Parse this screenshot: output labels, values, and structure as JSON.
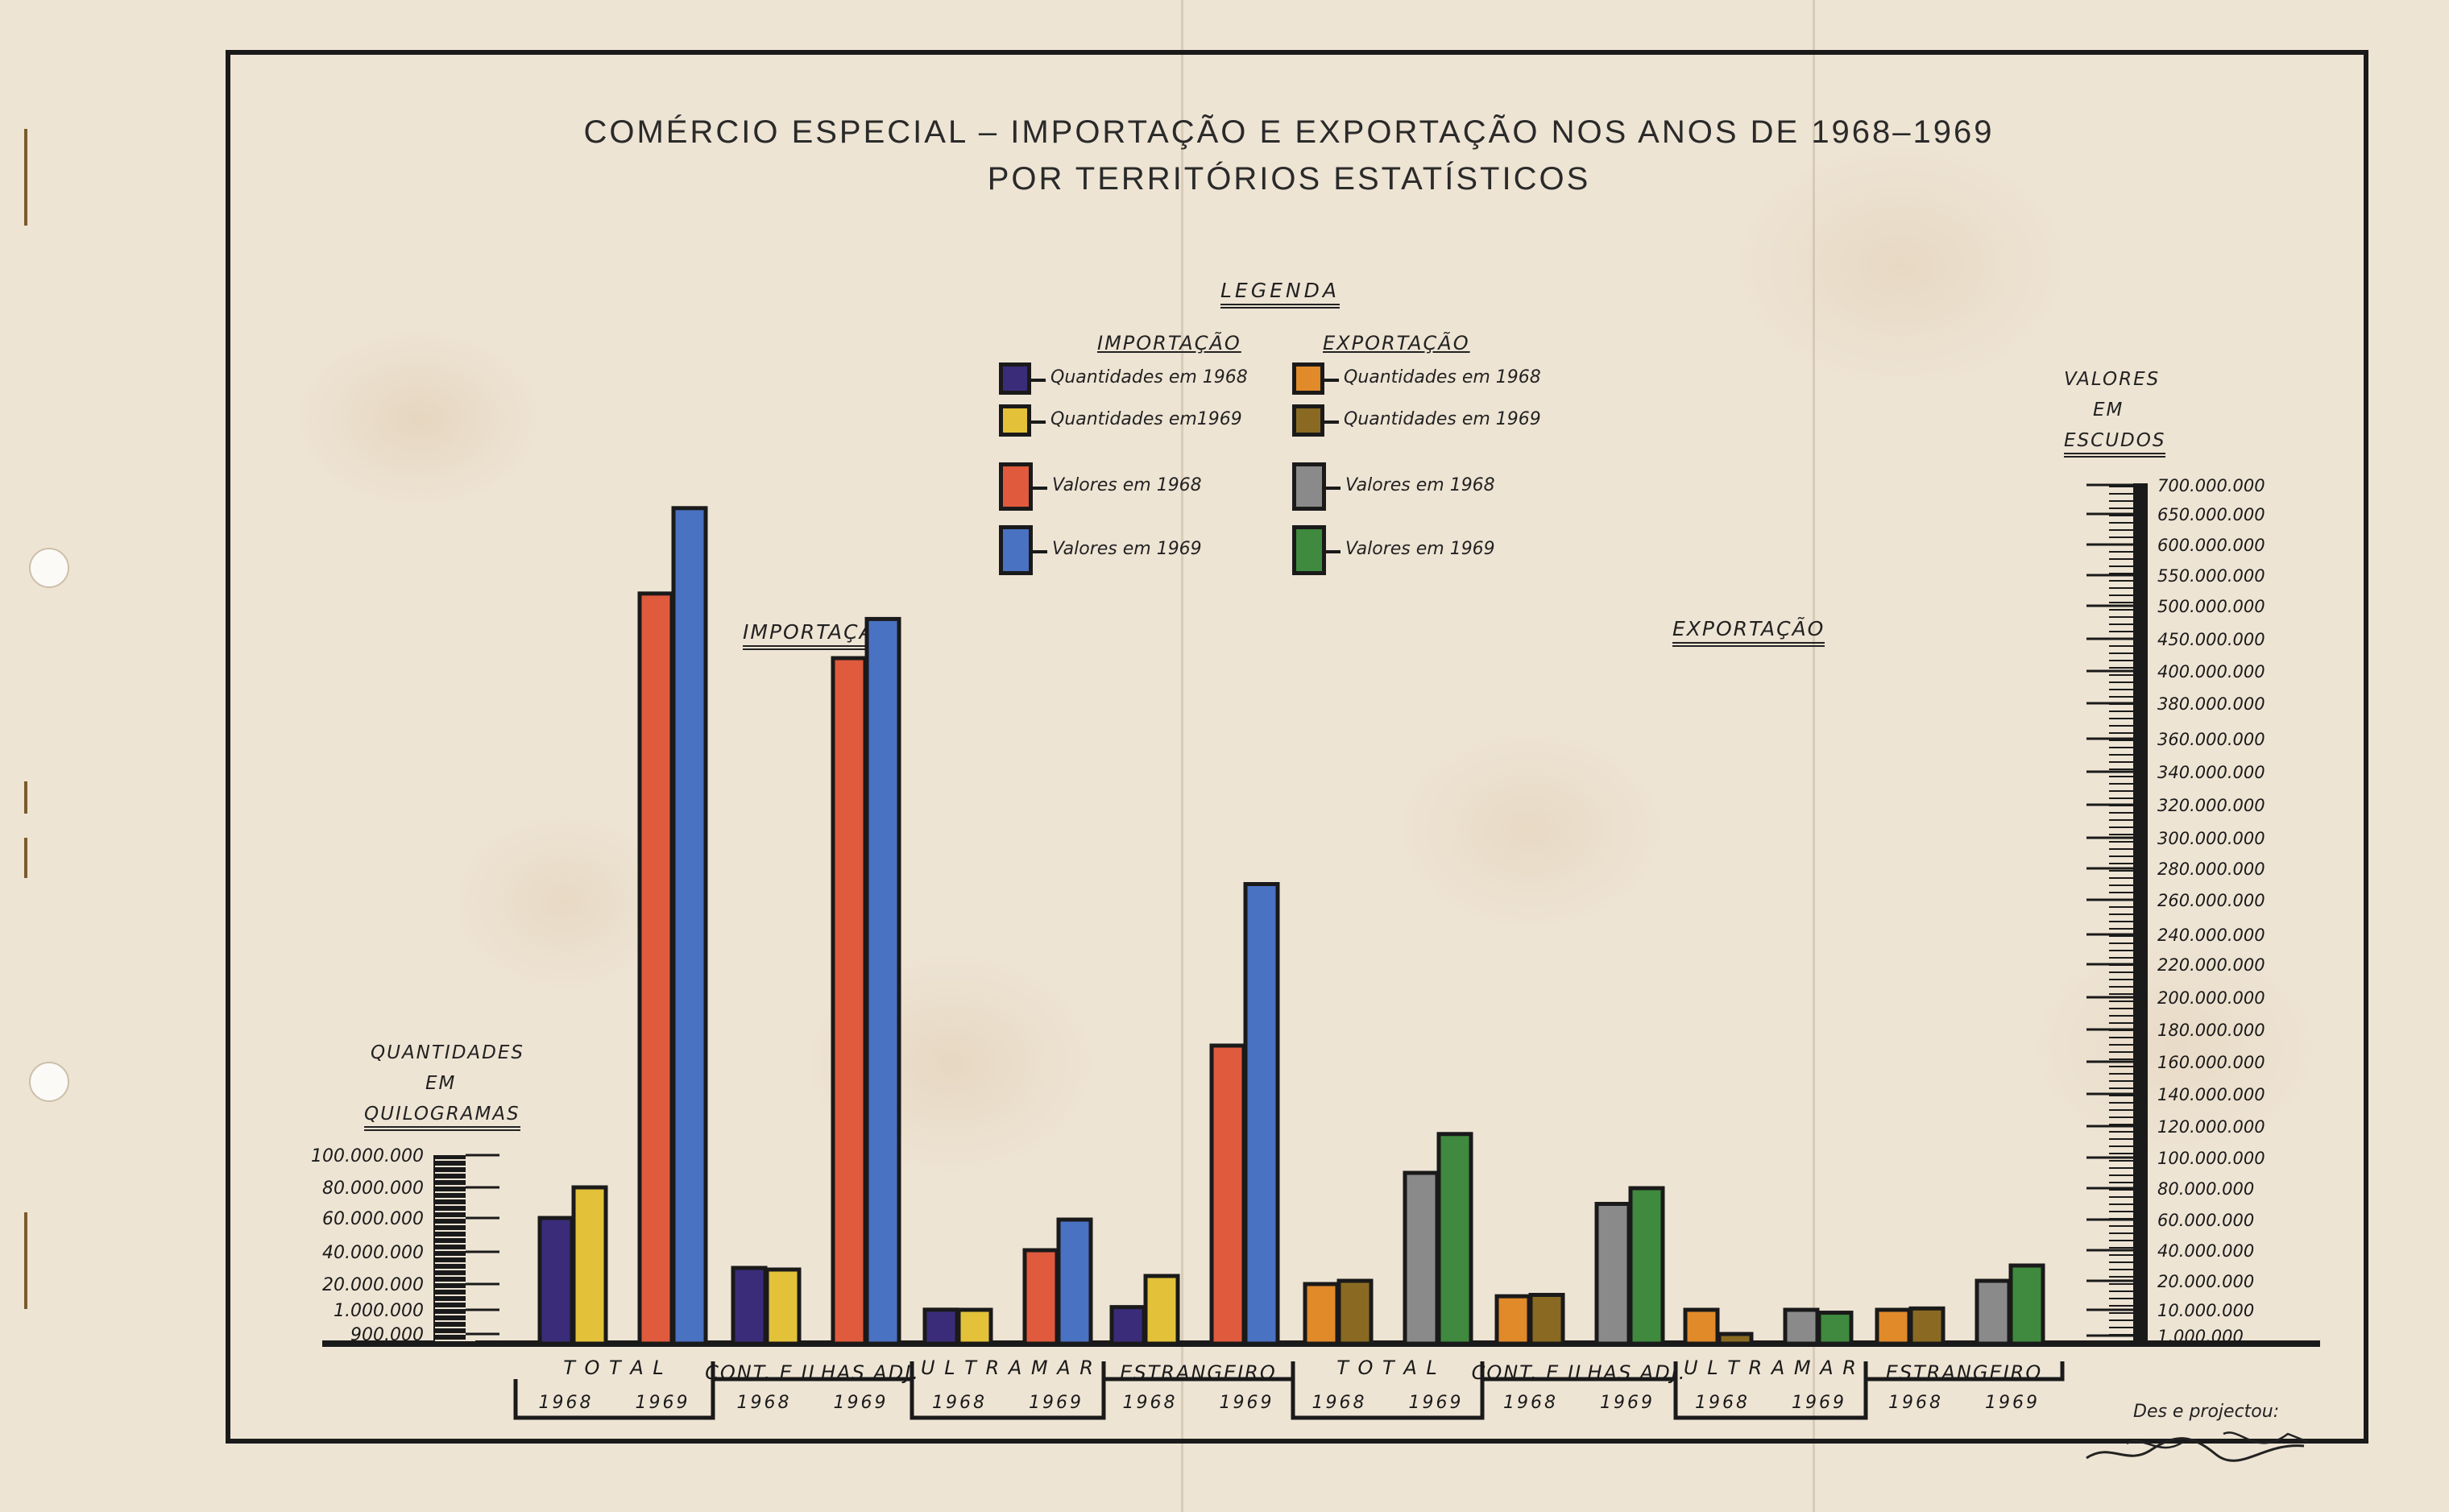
{
  "title_line1": "COMÉRCIO ESPECIAL – IMPORTAÇÃO E EXPORTAÇÃO NOS ANOS DE 1968–1969",
  "title_line2": "POR TERRITÓRIOS ESTATÍSTICOS",
  "legend": {
    "heading": "LEGENDA",
    "import_heading": "IMPORTAÇÃO",
    "export_heading": "EXPORTAÇÃO",
    "import_items": [
      {
        "label": "Quantidades em 1968",
        "color": "#3b2c7a"
      },
      {
        "label": "Quantidades em1969",
        "color": "#e3c23a"
      },
      {
        "label": "Valores   em  1968",
        "color": "#e05a3d"
      },
      {
        "label": "Valores  em  1969",
        "color": "#4a72c2"
      }
    ],
    "export_items": [
      {
        "label": "Quantidades  em  1968",
        "color": "#e08a2a"
      },
      {
        "label": "Quantidades  em 1969",
        "color": "#8a6a22"
      },
      {
        "label": "Valores  em  1968",
        "color": "#8a8a8a"
      },
      {
        "label": "Valores  em  1969",
        "color": "#3f8a3e"
      }
    ]
  },
  "section_labels": {
    "import": "IMPORTAÇÃO",
    "export": "EXPORTAÇÃO"
  },
  "left_axis": {
    "title": [
      "QUANTIDADES",
      "EM",
      "QUILOGRAMAS"
    ],
    "ticks": [
      "100.000.000",
      "80.000.000",
      "60.000.000",
      "40.000.000",
      "20.000.000",
      "1.000.000",
      "900.000"
    ]
  },
  "right_axis": {
    "title": [
      "VALORES",
      "EM",
      "ESCUDOS"
    ],
    "ticks": [
      "700.000.000",
      "650.000.000",
      "600.000.000",
      "550.000.000",
      "500.000.000",
      "450.000.000",
      "400.000.000",
      "380.000.000",
      "360.000.000",
      "340.000.000",
      "320.000.000",
      "300.000.000",
      "280.000.000",
      "260.000.000",
      "240.000.000",
      "220.000.000",
      "200.000.000",
      "180.000.000",
      "160.000.000",
      "140.000.000",
      "120.000.000",
      "100.000.000",
      "80.000.000",
      "60.000.000",
      "40.000.000",
      "20.000.000",
      "10.000.000",
      "1.000.000"
    ]
  },
  "credit": {
    "line1": "Des e projectou:",
    "signature": "Rogério Lancelote"
  },
  "chart_data": {
    "type": "bar",
    "title": "COMÉRCIO ESPECIAL – IMPORTAÇÃO E EXPORTAÇÃO NOS ANOS DE 1968–1969 POR TERRITÓRIOS ESTATÍSTICOS",
    "quantity_axis_label": "QUANTIDADES EM QUILOGRAMAS",
    "value_axis_label": "VALORES EM ESCUDOS",
    "value_axis_scale": "non-linear (piecewise, as printed)",
    "quantity_axis_scale": "non-linear (piecewise, as printed)",
    "groups": [
      {
        "section": "IMPORTAÇÃO",
        "category": "T O T A L",
        "years": [
          "1968",
          "1969"
        ],
        "quantities": [
          {
            "name": "Quantidades em 1968",
            "value": 60000000
          },
          {
            "name": "Quantidades em1969",
            "value": 80000000
          }
        ],
        "values": [
          {
            "name": "Valores em 1968",
            "value": 520000000
          },
          {
            "name": "Valores em 1969",
            "value": 660000000
          }
        ]
      },
      {
        "section": "IMPORTAÇÃO",
        "category": "CONT. E ILHAS ADJ.",
        "years": [
          "1968",
          "1969"
        ],
        "quantities": [
          {
            "name": "Quantidades em 1968",
            "value": 30000000
          },
          {
            "name": "Quantidades em1969",
            "value": 29000000
          }
        ],
        "values": [
          {
            "name": "Valores em 1968",
            "value": 420000000
          },
          {
            "name": "Valores em 1969",
            "value": 480000000
          }
        ]
      },
      {
        "section": "IMPORTAÇÃO",
        "category": "U L T R A M A R",
        "years": [
          "1968",
          "1969"
        ],
        "quantities": [
          {
            "name": "Quantidades em 1968",
            "value": 1100000
          },
          {
            "name": "Quantidades em1969",
            "value": 1000000
          }
        ],
        "values": [
          {
            "name": "Valores em 1968",
            "value": 40000000
          },
          {
            "name": "Valores em 1969",
            "value": 60000000
          }
        ]
      },
      {
        "section": "IMPORTAÇÃO",
        "category": "ESTRANGEIRO",
        "years": [
          "1968",
          "1969"
        ],
        "quantities": [
          {
            "name": "Quantidades em 1968",
            "value": 3000000
          },
          {
            "name": "Quantidades em1969",
            "value": 25000000
          }
        ],
        "values": [
          {
            "name": "Valores em 1968",
            "value": 170000000
          },
          {
            "name": "Valores em 1969",
            "value": 270000000
          }
        ]
      },
      {
        "section": "EXPORTAÇÃO",
        "category": "T O T A L",
        "years": [
          "1968",
          "1969"
        ],
        "quantities": [
          {
            "name": "Quantidades em 1968",
            "value": 20000000
          },
          {
            "name": "Quantidades em 1969",
            "value": 22000000
          }
        ],
        "values": [
          {
            "name": "Valores em 1968",
            "value": 90000000
          },
          {
            "name": "Valores em 1969",
            "value": 115000000
          }
        ]
      },
      {
        "section": "EXPORTAÇÃO",
        "category": "CONT. E ILHAS ADJ.",
        "years": [
          "1968",
          "1969"
        ],
        "quantities": [
          {
            "name": "Quantidades em 1968",
            "value": 11000000
          },
          {
            "name": "Quantidades em 1969",
            "value": 12000000
          }
        ],
        "values": [
          {
            "name": "Valores em 1968",
            "value": 70000000
          },
          {
            "name": "Valores em 1969",
            "value": 80000000
          }
        ]
      },
      {
        "section": "EXPORTAÇÃO",
        "category": "U L T R A M A R",
        "years": [
          "1968",
          "1969"
        ],
        "quantities": [
          {
            "name": "Quantidades em 1968",
            "value": 1000000
          },
          {
            "name": "Quantidades em 1969",
            "value": 900000
          }
        ],
        "values": [
          {
            "name": "Valores em 1968",
            "value": 10000000
          },
          {
            "name": "Valores em 1969",
            "value": 9000000
          }
        ]
      },
      {
        "section": "EXPORTAÇÃO",
        "category": "ESTRANGEIRO",
        "years": [
          "1968",
          "1969"
        ],
        "quantities": [
          {
            "name": "Quantidades em 1968",
            "value": 1000000
          },
          {
            "name": "Quantidades em 1969",
            "value": 2000000
          }
        ],
        "values": [
          {
            "name": "Valores em 1968",
            "value": 20000000
          },
          {
            "name": "Valores em 1969",
            "value": 30000000
          }
        ]
      }
    ],
    "legend_position": "top-center",
    "grid": false
  }
}
